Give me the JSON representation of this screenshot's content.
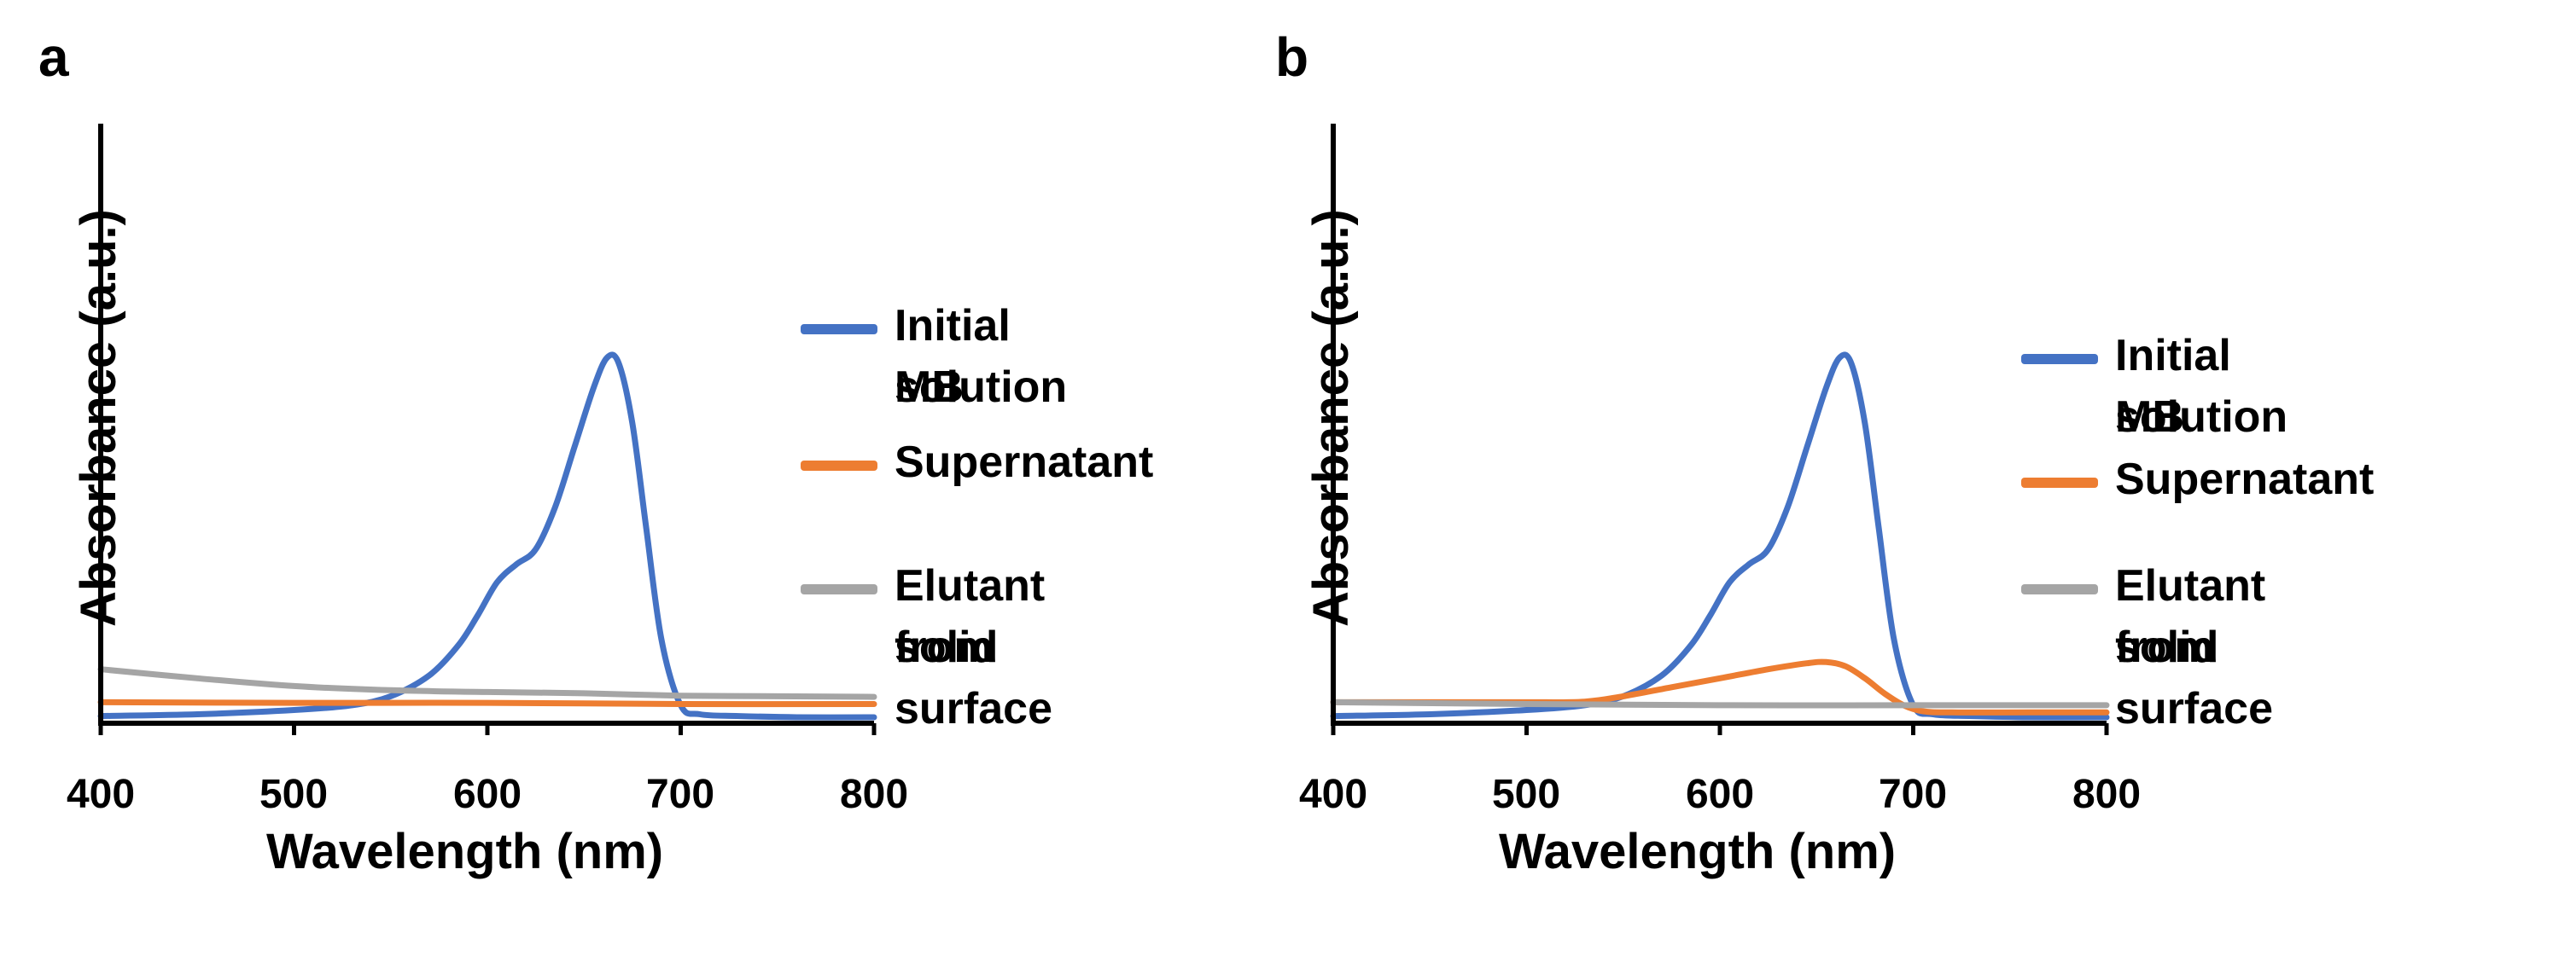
{
  "colors": {
    "initial_mb": "#4472C4",
    "supernatant": "#ED7D31",
    "elutant": "#A5A5A5",
    "axis": "#000000"
  },
  "chart_data": [
    {
      "panel_label": "a",
      "type": "line",
      "xlabel": "Wavelength (nm)",
      "ylabel": "Absorbance (a.u.)",
      "xlim": [
        400,
        800
      ],
      "ylim": [
        0,
        1.0
      ],
      "xticks": [
        "400",
        "500",
        "600",
        "700",
        "800"
      ],
      "legend_position": "right",
      "series": [
        {
          "name_line1": "Initial MB",
          "name_line2": "solution",
          "color_key": "initial_mb",
          "x": [
            400,
            450,
            500,
            530,
            550,
            570,
            585,
            595,
            605,
            615,
            625,
            635,
            645,
            655,
            662,
            668,
            675,
            682,
            690,
            700,
            710,
            730,
            760,
            800
          ],
          "y": [
            0.012,
            0.015,
            0.022,
            0.03,
            0.045,
            0.08,
            0.13,
            0.18,
            0.235,
            0.265,
            0.29,
            0.36,
            0.46,
            0.56,
            0.61,
            0.6,
            0.5,
            0.33,
            0.14,
            0.03,
            0.015,
            0.012,
            0.01,
            0.01
          ]
        },
        {
          "name_line1": "Supernatant",
          "name_line2": "",
          "color_key": "supernatant",
          "x": [
            400,
            500,
            600,
            700,
            800
          ],
          "y": [
            0.035,
            0.034,
            0.034,
            0.032,
            0.032
          ]
        },
        {
          "name_line1": "Elutant from",
          "name_line2": "solid surface",
          "color_key": "elutant",
          "x": [
            400,
            450,
            500,
            550,
            600,
            650,
            700,
            750,
            800
          ],
          "y": [
            0.09,
            0.075,
            0.062,
            0.055,
            0.052,
            0.05,
            0.046,
            0.045,
            0.044
          ]
        }
      ]
    },
    {
      "panel_label": "b",
      "type": "line",
      "xlabel": "Wavelength (nm)",
      "ylabel": "Absorbance (a.u.)",
      "xlim": [
        400,
        800
      ],
      "ylim": [
        0,
        1.0
      ],
      "xticks": [
        "400",
        "500",
        "600",
        "700",
        "800"
      ],
      "legend_position": "right",
      "series": [
        {
          "name_line1": "Initial MB",
          "name_line2": "solution",
          "color_key": "initial_mb",
          "x": [
            400,
            450,
            500,
            530,
            550,
            570,
            585,
            595,
            605,
            615,
            625,
            635,
            645,
            655,
            662,
            668,
            675,
            682,
            690,
            700,
            710,
            730,
            760,
            800
          ],
          "y": [
            0.012,
            0.015,
            0.022,
            0.03,
            0.045,
            0.08,
            0.13,
            0.18,
            0.235,
            0.265,
            0.29,
            0.36,
            0.46,
            0.56,
            0.61,
            0.6,
            0.5,
            0.33,
            0.14,
            0.03,
            0.015,
            0.012,
            0.01,
            0.01
          ]
        },
        {
          "name_line1": "Supernatant",
          "name_line2": "",
          "color_key": "supernatant",
          "x": [
            400,
            450,
            500,
            530,
            550,
            575,
            600,
            625,
            645,
            655,
            665,
            675,
            685,
            695,
            705,
            720,
            760,
            800
          ],
          "y": [
            0.035,
            0.035,
            0.035,
            0.036,
            0.045,
            0.06,
            0.075,
            0.09,
            0.1,
            0.102,
            0.095,
            0.075,
            0.05,
            0.03,
            0.02,
            0.018,
            0.018,
            0.018
          ]
        },
        {
          "name_line1": "Elutant from",
          "name_line2": "solid surface",
          "color_key": "elutant",
          "x": [
            400,
            500,
            600,
            700,
            800
          ],
          "y": [
            0.035,
            0.032,
            0.03,
            0.03,
            0.03
          ]
        }
      ]
    }
  ]
}
